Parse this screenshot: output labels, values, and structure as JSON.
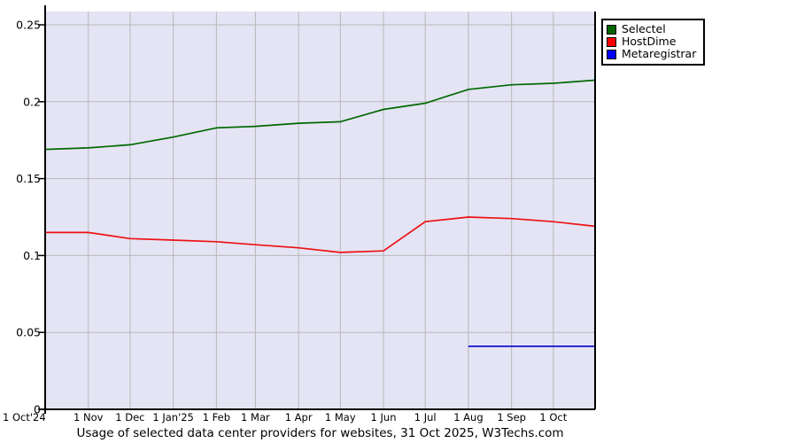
{
  "page": {
    "background": "#ffffff"
  },
  "chart_data": {
    "type": "line",
    "title": "Usage of selected data center providers for websites, 31 Oct 2025, W3Techs.com",
    "x_tick_labels": [
      "1 Oct'24",
      "1 Nov",
      "1 Dec",
      "1 Jan'25",
      "1 Feb",
      "1 Mar",
      "1 Apr",
      "1 May",
      "1 Jun",
      "1 Jul",
      "1 Aug",
      "1 Sep",
      "1 Oct"
    ],
    "y_tick_labels": [
      "0",
      "0.05",
      "0.1",
      "0.15",
      "0.2",
      "0.25"
    ],
    "y_ticks": [
      0,
      0.05,
      0.1,
      0.15,
      0.2,
      0.25
    ],
    "ylim": [
      0,
      0.25
    ],
    "x_range_note": "monthly values from 1 Oct 2024 to 1 Oct 2025 plus final value at 31 Oct 2025",
    "grid": true,
    "legend_position": "top-right-outside",
    "plot_background": "#e4e4f5",
    "gridline_color": "#b8b8b8",
    "axis_color": "#000000",
    "series": [
      {
        "name": "Selectel",
        "color": "#006900",
        "legend_color": "#006400",
        "values": [
          0.169,
          0.17,
          0.172,
          0.177,
          0.183,
          0.184,
          0.186,
          0.187,
          0.195,
          0.199,
          0.208,
          0.211,
          0.212,
          0.214
        ]
      },
      {
        "name": "HostDime",
        "color": "#ee1111",
        "legend_color": "#ff0000",
        "values": [
          0.115,
          0.115,
          0.111,
          0.11,
          0.109,
          0.107,
          0.105,
          0.102,
          0.103,
          0.122,
          0.125,
          0.124,
          0.122,
          0.119
        ]
      },
      {
        "name": "Metaregistrar",
        "color": "#0000cc",
        "legend_color": "#0000ff",
        "values": [
          null,
          null,
          null,
          null,
          null,
          null,
          null,
          null,
          null,
          null,
          0.041,
          0.041,
          0.041,
          0.041
        ]
      }
    ]
  }
}
